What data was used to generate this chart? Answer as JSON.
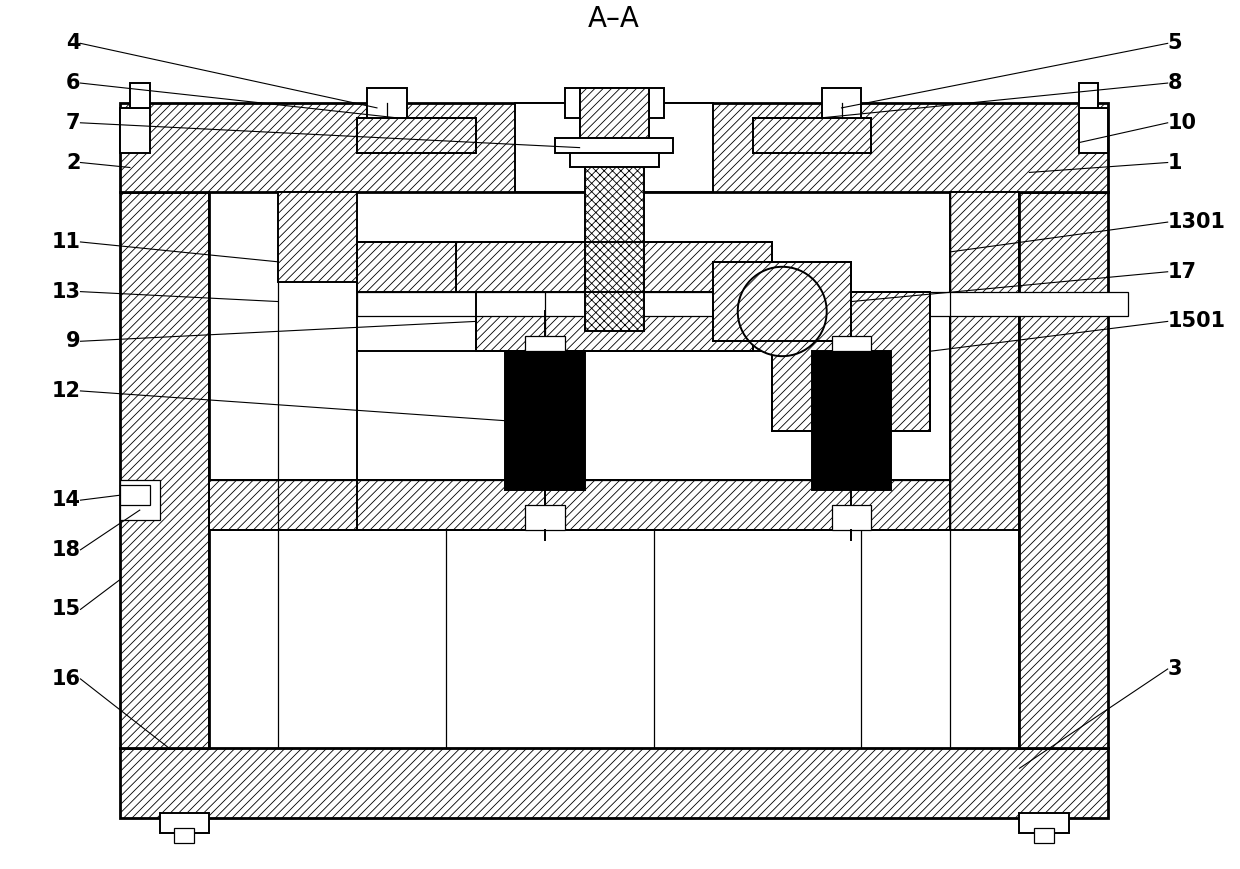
{
  "title": "A–A",
  "bg_color": "#ffffff",
  "label_fontsize": 15,
  "label_fontweight": "bold"
}
